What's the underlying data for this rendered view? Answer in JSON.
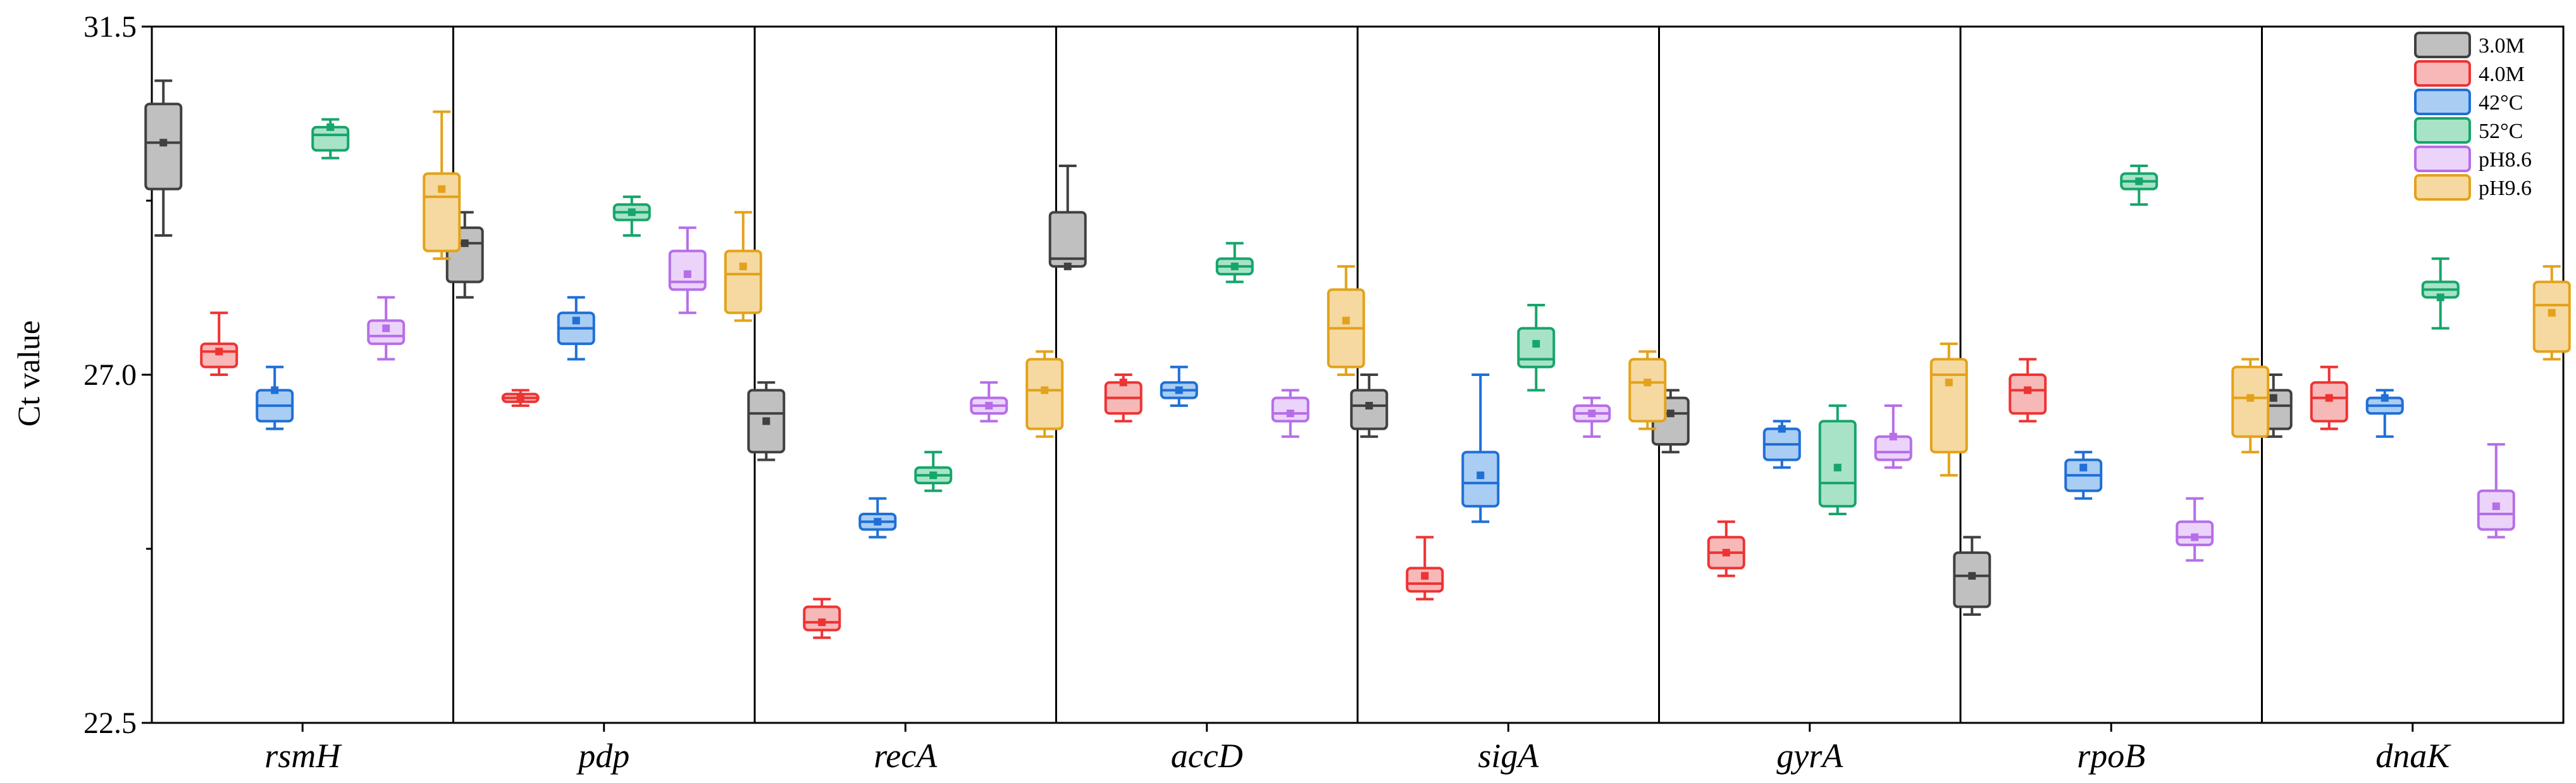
{
  "chart_data": {
    "type": "box",
    "ylabel": "Ct value",
    "xlabel": "",
    "ylim": [
      22.5,
      31.5
    ],
    "yticks": [
      "22.5",
      "27.0",
      "31.5"
    ],
    "categories": [
      "rsmH",
      "pdp",
      "recA",
      "accD",
      "sigA",
      "gyrA",
      "rpoB",
      "dnaK"
    ],
    "legend_position": "top-right",
    "series": [
      {
        "name": "3.0M",
        "stroke": "#404040",
        "fill": "#c0c0c0",
        "boxes": [
          {
            "min": 28.8,
            "q1": 29.4,
            "median": 30.0,
            "q3": 30.5,
            "max": 30.8,
            "mean": 30.0
          },
          {
            "min": 28.0,
            "q1": 28.2,
            "median": 28.7,
            "q3": 28.9,
            "max": 29.1,
            "mean": 28.7
          },
          {
            "min": 25.9,
            "q1": 26.0,
            "median": 26.5,
            "q3": 26.8,
            "max": 26.9,
            "mean": 26.4
          },
          {
            "min": 28.4,
            "q1": 28.4,
            "median": 28.5,
            "q3": 29.1,
            "max": 29.7,
            "mean": 28.4
          },
          {
            "min": 26.2,
            "q1": 26.3,
            "median": 26.6,
            "q3": 26.8,
            "max": 27.0,
            "mean": 26.6
          },
          {
            "min": 26.0,
            "q1": 26.1,
            "median": 26.5,
            "q3": 26.7,
            "max": 26.8,
            "mean": 26.5
          },
          {
            "min": 23.9,
            "q1": 24.0,
            "median": 24.4,
            "q3": 24.7,
            "max": 24.9,
            "mean": 24.4
          },
          {
            "min": 26.2,
            "q1": 26.3,
            "median": 26.6,
            "q3": 26.8,
            "max": 27.0,
            "mean": 26.7
          }
        ]
      },
      {
        "name": "4.0M",
        "stroke": "#ee3333",
        "fill": "#f7b8b8",
        "boxes": [
          {
            "min": 27.0,
            "q1": 27.1,
            "median": 27.3,
            "q3": 27.4,
            "max": 27.8,
            "mean": 27.3
          },
          {
            "min": 26.6,
            "q1": 26.65,
            "median": 26.7,
            "q3": 26.75,
            "max": 26.8,
            "mean": 26.7
          },
          {
            "min": 23.6,
            "q1": 23.7,
            "median": 23.8,
            "q3": 24.0,
            "max": 24.1,
            "mean": 23.8
          },
          {
            "min": 26.4,
            "q1": 26.5,
            "median": 26.7,
            "q3": 26.9,
            "max": 27.0,
            "mean": 26.9
          },
          {
            "min": 24.1,
            "q1": 24.2,
            "median": 24.3,
            "q3": 24.5,
            "max": 24.9,
            "mean": 24.4
          },
          {
            "min": 24.4,
            "q1": 24.5,
            "median": 24.7,
            "q3": 24.9,
            "max": 25.1,
            "mean": 24.7
          },
          {
            "min": 26.4,
            "q1": 26.5,
            "median": 26.8,
            "q3": 27.0,
            "max": 27.2,
            "mean": 26.8
          },
          {
            "min": 26.3,
            "q1": 26.4,
            "median": 26.7,
            "q3": 26.9,
            "max": 27.1,
            "mean": 26.7
          }
        ]
      },
      {
        "name": "42°C",
        "stroke": "#1f6fd6",
        "fill": "#a9cdf3",
        "boxes": [
          {
            "min": 26.3,
            "q1": 26.4,
            "median": 26.6,
            "q3": 26.8,
            "max": 27.1,
            "mean": 26.8
          },
          {
            "min": 27.2,
            "q1": 27.4,
            "median": 27.6,
            "q3": 27.8,
            "max": 28.0,
            "mean": 27.7
          },
          {
            "min": 24.9,
            "q1": 25.0,
            "median": 25.1,
            "q3": 25.2,
            "max": 25.4,
            "mean": 25.1
          },
          {
            "min": 26.6,
            "q1": 26.7,
            "median": 26.8,
            "q3": 26.9,
            "max": 27.1,
            "mean": 26.8
          },
          {
            "min": 25.1,
            "q1": 25.3,
            "median": 25.6,
            "q3": 26.0,
            "max": 27.0,
            "mean": 25.7
          },
          {
            "min": 25.8,
            "q1": 25.9,
            "median": 26.1,
            "q3": 26.3,
            "max": 26.4,
            "mean": 26.3
          },
          {
            "min": 25.4,
            "q1": 25.5,
            "median": 25.7,
            "q3": 25.9,
            "max": 26.0,
            "mean": 25.8
          },
          {
            "min": 26.2,
            "q1": 26.5,
            "median": 26.6,
            "q3": 26.7,
            "max": 26.8,
            "mean": 26.7
          }
        ]
      },
      {
        "name": "52°C",
        "stroke": "#16a56a",
        "fill": "#a8e3c7",
        "boxes": [
          {
            "min": 29.8,
            "q1": 29.9,
            "median": 30.1,
            "q3": 30.2,
            "max": 30.3,
            "mean": 30.2
          },
          {
            "min": 28.8,
            "q1": 29.0,
            "median": 29.1,
            "q3": 29.2,
            "max": 29.3,
            "mean": 29.1
          },
          {
            "min": 25.5,
            "q1": 25.6,
            "median": 25.7,
            "q3": 25.8,
            "max": 26.0,
            "mean": 25.7
          },
          {
            "min": 28.2,
            "q1": 28.3,
            "median": 28.4,
            "q3": 28.5,
            "max": 28.7,
            "mean": 28.4
          },
          {
            "min": 26.8,
            "q1": 27.1,
            "median": 27.2,
            "q3": 27.6,
            "max": 27.9,
            "mean": 27.4
          },
          {
            "min": 25.2,
            "q1": 25.3,
            "median": 25.6,
            "q3": 26.4,
            "max": 26.6,
            "mean": 25.8
          },
          {
            "min": 29.2,
            "q1": 29.4,
            "median": 29.5,
            "q3": 29.6,
            "max": 29.7,
            "mean": 29.5
          },
          {
            "min": 27.6,
            "q1": 28.0,
            "median": 28.1,
            "q3": 28.2,
            "max": 28.5,
            "mean": 28.0
          }
        ]
      },
      {
        "name": "pH8.6",
        "stroke": "#b66ee8",
        "fill": "#ebd3fa",
        "boxes": [
          {
            "min": 27.2,
            "q1": 27.4,
            "median": 27.5,
            "q3": 27.7,
            "max": 28.0,
            "mean": 27.6
          },
          {
            "min": 27.8,
            "q1": 28.1,
            "median": 28.2,
            "q3": 28.6,
            "max": 28.9,
            "mean": 28.3
          },
          {
            "min": 26.4,
            "q1": 26.5,
            "median": 26.6,
            "q3": 26.7,
            "max": 26.9,
            "mean": 26.6
          },
          {
            "min": 26.2,
            "q1": 26.4,
            "median": 26.5,
            "q3": 26.7,
            "max": 26.8,
            "mean": 26.5
          },
          {
            "min": 26.2,
            "q1": 26.4,
            "median": 26.5,
            "q3": 26.6,
            "max": 26.7,
            "mean": 26.5
          },
          {
            "min": 25.8,
            "q1": 25.9,
            "median": 26.0,
            "q3": 26.2,
            "max": 26.6,
            "mean": 26.2
          },
          {
            "min": 24.6,
            "q1": 24.8,
            "median": 24.9,
            "q3": 25.1,
            "max": 25.4,
            "mean": 24.9
          },
          {
            "min": 24.9,
            "q1": 25.0,
            "median": 25.2,
            "q3": 25.5,
            "max": 26.1,
            "mean": 25.3
          }
        ]
      },
      {
        "name": "pH9.6",
        "stroke": "#e3a21a",
        "fill": "#f6d9a0",
        "boxes": [
          {
            "min": 28.5,
            "q1": 28.6,
            "median": 29.3,
            "q3": 29.6,
            "max": 30.4,
            "mean": 29.4
          },
          {
            "min": 27.7,
            "q1": 27.8,
            "median": 28.3,
            "q3": 28.6,
            "max": 29.1,
            "mean": 28.4
          },
          {
            "min": 26.2,
            "q1": 26.3,
            "median": 26.8,
            "q3": 27.2,
            "max": 27.3,
            "mean": 26.8
          },
          {
            "min": 27.0,
            "q1": 27.1,
            "median": 27.6,
            "q3": 28.1,
            "max": 28.4,
            "mean": 27.7
          },
          {
            "min": 26.3,
            "q1": 26.4,
            "median": 26.9,
            "q3": 27.2,
            "max": 27.3,
            "mean": 26.9
          },
          {
            "min": 25.7,
            "q1": 26.0,
            "median": 27.0,
            "q3": 27.2,
            "max": 27.4,
            "mean": 26.9
          },
          {
            "min": 26.0,
            "q1": 26.2,
            "median": 26.7,
            "q3": 27.1,
            "max": 27.2,
            "mean": 26.7
          },
          {
            "min": 27.2,
            "q1": 27.3,
            "median": 27.9,
            "q3": 28.2,
            "max": 28.4,
            "mean": 27.8
          }
        ]
      }
    ]
  }
}
